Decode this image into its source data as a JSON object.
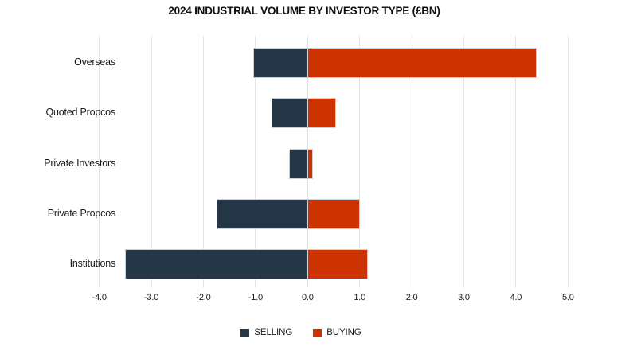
{
  "title": "2024 INDUSTRIAL VOLUME BY INVESTOR TYPE (£BN)",
  "colors": {
    "selling": "#253746",
    "buying": "#cc3300",
    "gridline": "#e3e3e3",
    "bar_border": "#ccd0da",
    "text": "#1c1c1c",
    "background": "#ffffff"
  },
  "legend": {
    "position": "bottom-center",
    "items": [
      {
        "label": "SELLING",
        "color": "#253746"
      },
      {
        "label": "BUYING",
        "color": "#cc3300"
      }
    ]
  },
  "chart_data": {
    "type": "bar",
    "orientation": "horizontal",
    "title": "2024 INDUSTRIAL VOLUME BY INVESTOR TYPE (£BN)",
    "categories": [
      "Overseas",
      "Quoted Propcos",
      "Private Investors",
      "Private Propcos",
      "Institutions"
    ],
    "series": [
      {
        "name": "SELLING",
        "color": "#253746",
        "values": [
          -1.05,
          -0.7,
          -0.35,
          -1.75,
          -3.5
        ]
      },
      {
        "name": "BUYING",
        "color": "#cc3300",
        "values": [
          4.4,
          0.55,
          0.1,
          1.0,
          1.15
        ]
      }
    ],
    "xlabel": "",
    "ylabel": "",
    "xlim": [
      -4.0,
      5.0
    ],
    "xticks": [
      -4.0,
      -3.0,
      -2.0,
      -1.0,
      0.0,
      1.0,
      2.0,
      3.0,
      4.0,
      5.0
    ],
    "xtick_labels": [
      "-4.0",
      "-3.0",
      "-2.0",
      "-1.0",
      "0.0",
      "1.0",
      "2.0",
      "3.0",
      "4.0",
      "5.0"
    ],
    "grid": true,
    "legend_position": "bottom",
    "units": "£bn"
  }
}
